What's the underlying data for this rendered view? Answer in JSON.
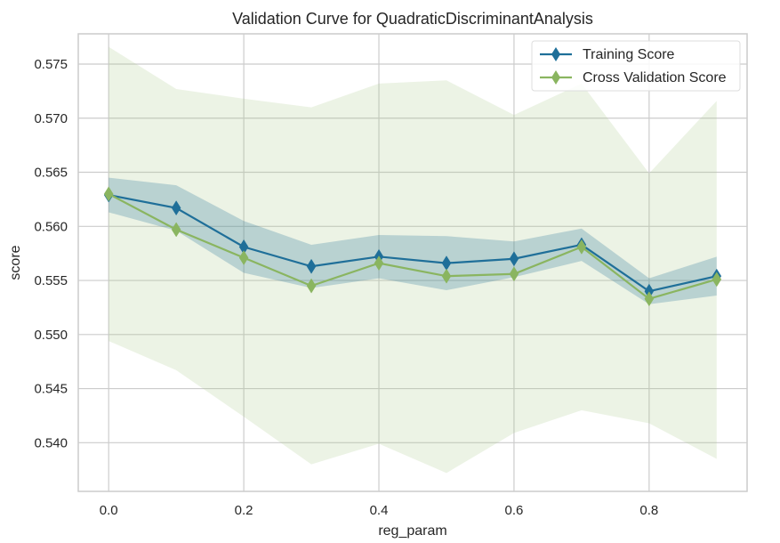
{
  "chart_data": {
    "type": "line",
    "title": "Validation Curve for QuadraticDiscriminantAnalysis",
    "xlabel": "reg_param",
    "ylabel": "score",
    "xlim": [
      -0.045,
      0.945
    ],
    "ylim": [
      0.5355,
      0.5778
    ],
    "xticks": [
      0.0,
      0.2,
      0.4,
      0.6,
      0.8
    ],
    "xtick_labels": [
      "0.0",
      "0.2",
      "0.4",
      "0.6",
      "0.8"
    ],
    "yticks": [
      0.54,
      0.545,
      0.55,
      0.555,
      0.56,
      0.565,
      0.57,
      0.575
    ],
    "ytick_labels": [
      "0.540",
      "0.545",
      "0.550",
      "0.555",
      "0.560",
      "0.565",
      "0.570",
      "0.575"
    ],
    "grid": true,
    "legend_position": "top-right",
    "x": [
      0.0,
      0.1,
      0.2,
      0.3,
      0.4,
      0.5,
      0.6,
      0.7,
      0.8,
      0.9
    ],
    "series": [
      {
        "name": "Training Score",
        "color": "#1f6f99",
        "band_color": "#1f6f99",
        "values": [
          0.5629,
          0.5617,
          0.5581,
          0.5563,
          0.5572,
          0.5566,
          0.557,
          0.5583,
          0.554,
          0.5554
        ],
        "lower": [
          0.5613,
          0.5596,
          0.5557,
          0.5543,
          0.5552,
          0.5541,
          0.5553,
          0.5568,
          0.5528,
          0.5536
        ],
        "upper": [
          0.5645,
          0.5638,
          0.5605,
          0.5583,
          0.5592,
          0.5591,
          0.5586,
          0.5598,
          0.5552,
          0.5572
        ]
      },
      {
        "name": "Cross Validation Score",
        "color": "#8ab560",
        "band_color": "#a9c98a",
        "values": [
          0.563,
          0.5597,
          0.5571,
          0.5545,
          0.5566,
          0.5554,
          0.5556,
          0.5581,
          0.5533,
          0.5551
        ],
        "lower": [
          0.5494,
          0.5467,
          0.5424,
          0.538,
          0.5399,
          0.5372,
          0.5409,
          0.543,
          0.5418,
          0.5385
        ],
        "upper": [
          0.5766,
          0.5727,
          0.5718,
          0.571,
          0.5732,
          0.5735,
          0.5703,
          0.5732,
          0.5649,
          0.5716
        ]
      }
    ]
  }
}
